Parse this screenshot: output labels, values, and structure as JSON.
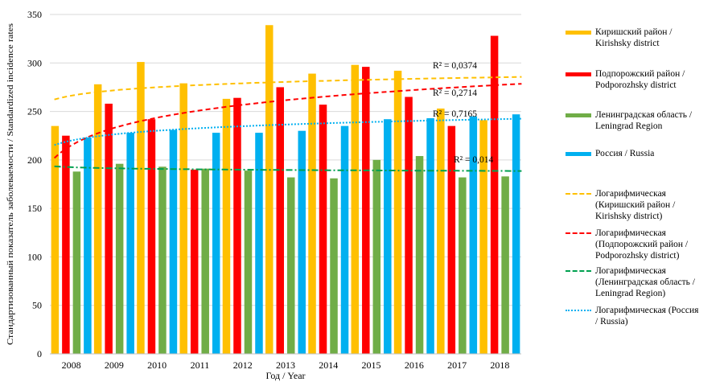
{
  "chart_data": {
    "type": "bar",
    "categories": [
      "2008",
      "2009",
      "2010",
      "2011",
      "2012",
      "2013",
      "2014",
      "2015",
      "2016",
      "2017",
      "2018"
    ],
    "ylim": [
      0,
      350
    ],
    "yticks": [
      0,
      50,
      100,
      150,
      200,
      250,
      300,
      350
    ],
    "xlabel": "Год / Year",
    "ylabel": "Стандартизованный показатель заболеваемости / Standardized incidence rates",
    "grid": true,
    "legend_position": "right",
    "series": [
      {
        "name": "Киришский район /\nKirishsky district",
        "color": "#FFC000",
        "values": [
          235,
          278,
          301,
          279,
          263,
          339,
          289,
          298,
          292,
          253,
          241
        ]
      },
      {
        "name": "Подпорожский район /\nPodporozhsky district",
        "color": "#FF0000",
        "values": [
          225,
          258,
          242,
          190,
          264,
          275,
          257,
          296,
          265,
          235,
          328
        ]
      },
      {
        "name": "Ленинградская область /\nLeningrad Region",
        "color": "#70AD47",
        "values": [
          188,
          196,
          193,
          191,
          189,
          182,
          181,
          200,
          204,
          182,
          183
        ]
      },
      {
        "name": "Россия / Russia",
        "color": "#00B0F0",
        "values": [
          223,
          228,
          231,
          228,
          228,
          230,
          235,
          242,
          243,
          245,
          247
        ]
      }
    ],
    "trendlines": [
      {
        "name": "Логарифмическая\n(Киришский район /\nKirishsky district)",
        "color": "#FFC000",
        "style": "dashed",
        "a": 266.3,
        "b": 7.9,
        "r2_label": "R² = 0,0374"
      },
      {
        "name": "Логарифмическая\n(Подпорожский район /\nPodporozhsky district)",
        "color": "#FF0000",
        "style": "dashed",
        "a": 215,
        "b": 26,
        "r2_label": "R² = 0,2714"
      },
      {
        "name": "Логарифмическая\n(Ленинградская область /\nLeningrad Region)",
        "color": "#00A050",
        "style": "dashdot",
        "a": 192.5,
        "b": -1.6,
        "r2_label": "R² = 0,014"
      },
      {
        "name": "Логарифмическая (Россия\n/ Russia)",
        "color": "#00B0F0",
        "style": "dotted",
        "a": 220,
        "b": 9.2,
        "r2_label": "R² = 0,7165"
      }
    ]
  }
}
